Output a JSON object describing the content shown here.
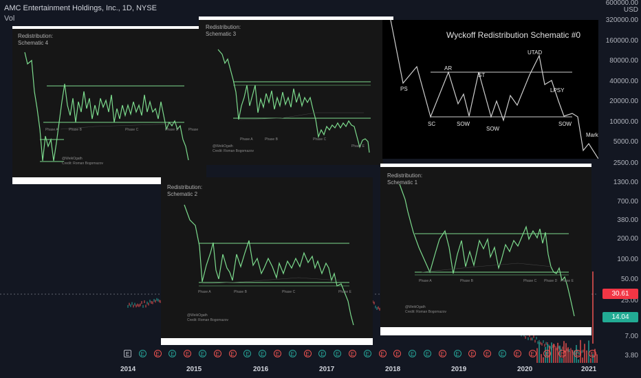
{
  "header": {
    "title": "AMC Entertainment Holdings, Inc., 1D, NYSE",
    "indicator": "Vol"
  },
  "y_axis": {
    "currency": "USD",
    "ticks": [
      "600000.00",
      "320000.00",
      "160000.00",
      "80000.00",
      "40000.00",
      "20000.00",
      "10000.00",
      "5000.00",
      "2500.00",
      "1300.00",
      "700.00",
      "380.00",
      "200.00",
      "100.00",
      "50.00",
      "25.00",
      "7.00",
      "3.80"
    ]
  },
  "x_axis": {
    "ticks": [
      "2014",
      "2015",
      "2016",
      "2017",
      "2018",
      "2019",
      "2020",
      "2021"
    ]
  },
  "price_tags": {
    "previous": "30.61",
    "last": "14.04",
    "previous_color": "#f23645",
    "last_color": "#22ab94"
  },
  "earnings_badges": [
    "E",
    "E",
    "E",
    "E",
    "E",
    "E",
    "E",
    "E",
    "E",
    "E",
    "E",
    "E",
    "E",
    "E",
    "E",
    "E",
    "E",
    "E",
    "E",
    "E",
    "E",
    "E",
    "E",
    "E",
    "E",
    "E",
    "E",
    "E",
    "E",
    "E",
    "E",
    "E"
  ],
  "panels": {
    "schematic4": {
      "title_line1": "Redistribution:",
      "title_line2": "Schematic 4",
      "phases": [
        "Phase A",
        "Phase B",
        "Phase C",
        "Phase D",
        "Phase E"
      ],
      "credit1": "@WeikOgath",
      "credit2": "Credit: Roman Bogomazov"
    },
    "schematic3": {
      "title_line1": "Redistribution:",
      "title_line2": "Schematic 3",
      "phases": [
        "Phase A",
        "Phase B",
        "Phase C",
        "Phase E"
      ],
      "credit1": "@WeikOgath",
      "credit2": "Credit: Roman Bogomazov"
    },
    "schematic2": {
      "title_line1": "Redistribution:",
      "title_line2": "Schematic 2",
      "phases": [
        "Phase A",
        "Phase B",
        "Phase C",
        "Phase E"
      ],
      "credit1": "@WeikOgath",
      "credit2": "Credit: Roman Bogomazov"
    },
    "schematic1": {
      "title_line1": "Redistribution:",
      "title_line2": "Schematic 1",
      "phases": [
        "Phase A",
        "Phase B",
        "Phase C",
        "Phase D",
        "Phase E"
      ],
      "credit1": "@WeikOgath",
      "credit2": "Credit: Roman Bogomazov"
    },
    "schematic0": {
      "title": "Wyckoff Redistribution Schematic #0",
      "labels": {
        "ps": "PS",
        "ar": "AR",
        "st": "ST",
        "utad": "UTAD",
        "lpsy": "LPSY",
        "sc": "SC",
        "sow1": "SOW",
        "sow2": "SOW",
        "sow3": "SOW",
        "mark": "Mark"
      }
    }
  },
  "colors": {
    "background": "#131722",
    "schematic_line": "#7ddc8e",
    "price_up": "#26a69a",
    "price_down": "#ef5350"
  }
}
